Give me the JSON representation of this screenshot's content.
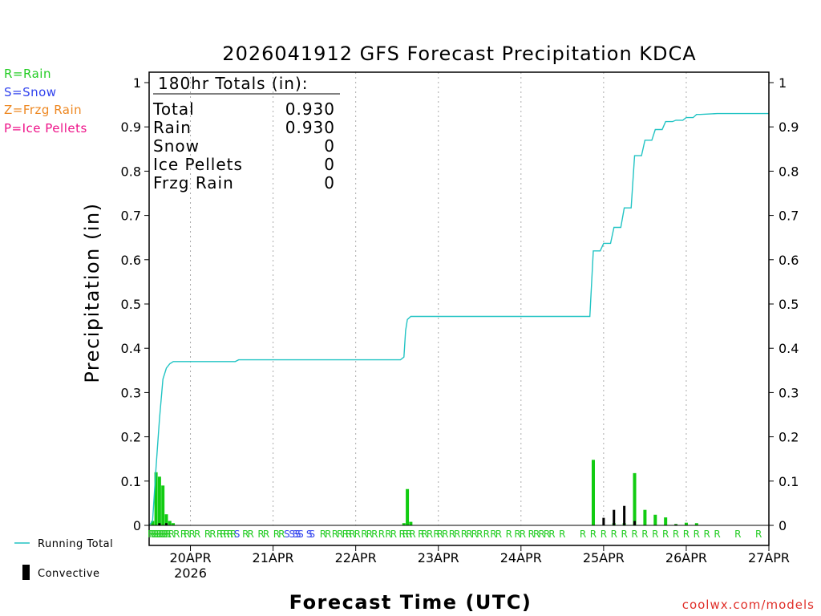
{
  "page": {
    "credit": "coolwx.com/models",
    "credit_color": "#e0302a"
  },
  "phase_legend": [
    {
      "label": "R=Rain",
      "color": "#22cc22"
    },
    {
      "label": "S=Snow",
      "color": "#3344ee"
    },
    {
      "label": "Z=Frzg Rain",
      "color": "#ee8822"
    },
    {
      "label": "P=Ice Pellets",
      "color": "#ee1188"
    }
  ],
  "line_legend": {
    "running_total": "Running Total",
    "convective": "Convective"
  },
  "totals": {
    "heading": "180hr Totals (in):",
    "rows": [
      {
        "label": "Total",
        "value": "0.930"
      },
      {
        "label": "Rain",
        "value": "0.930"
      },
      {
        "label": "Snow",
        "value": "0"
      },
      {
        "label": "Ice Pellets",
        "value": "0"
      },
      {
        "label": "Frzg Rain",
        "value": "0"
      }
    ]
  },
  "chart_data": {
    "type": "bar",
    "title": "2026041912 GFS Forecast Precipitation KDCA",
    "xlabel": "Forecast Time (UTC)",
    "ylabel": "Precipitation (in)",
    "ylim": [
      0,
      1.0
    ],
    "xlim_hours": [
      0,
      180
    ],
    "yticks": [
      0,
      0.1,
      0.2,
      0.3,
      0.4,
      0.5,
      0.6,
      0.7,
      0.8,
      0.9,
      1
    ],
    "ytick_labels": [
      "0",
      "0.1",
      "0.2",
      "0.3",
      "0.4",
      "0.5",
      "0.6",
      "0.7",
      "0.8",
      "0.9",
      "1"
    ],
    "xticks": [
      {
        "hour": 12,
        "label": "20APR",
        "sublabel": "2026"
      },
      {
        "hour": 36,
        "label": "21APR",
        "sublabel": ""
      },
      {
        "hour": 60,
        "label": "22APR",
        "sublabel": ""
      },
      {
        "hour": 84,
        "label": "23APR",
        "sublabel": ""
      },
      {
        "hour": 108,
        "label": "24APR",
        "sublabel": ""
      },
      {
        "hour": 132,
        "label": "25APR",
        "sublabel": ""
      },
      {
        "hour": 156,
        "label": "26APR",
        "sublabel": ""
      },
      {
        "hour": 180,
        "label": "27APR",
        "sublabel": ""
      }
    ],
    "colors": {
      "precip_bar": "#11cc11",
      "convective_bar": "#000000",
      "running_total": "#22c4c4",
      "grid": "#aaaaaa",
      "rain_marker": "#22cc22",
      "snow_marker": "#3344ee"
    },
    "precip_bars": [
      {
        "hour": 1,
        "value": 0.01
      },
      {
        "hour": 2,
        "value": 0.12
      },
      {
        "hour": 3,
        "value": 0.11
      },
      {
        "hour": 4,
        "value": 0.09
      },
      {
        "hour": 5,
        "value": 0.025
      },
      {
        "hour": 6,
        "value": 0.01
      },
      {
        "hour": 7,
        "value": 0.005
      },
      {
        "hour": 74,
        "value": 0.005
      },
      {
        "hour": 75,
        "value": 0.082
      },
      {
        "hour": 76,
        "value": 0.008
      },
      {
        "hour": 129,
        "value": 0.148
      },
      {
        "hour": 135,
        "value": 0.005
      },
      {
        "hour": 138,
        "value": 0.005
      },
      {
        "hour": 141,
        "value": 0.118
      },
      {
        "hour": 144,
        "value": 0.035
      },
      {
        "hour": 147,
        "value": 0.024
      },
      {
        "hour": 150,
        "value": 0.018
      },
      {
        "hour": 153,
        "value": 0.003
      },
      {
        "hour": 156,
        "value": 0.006
      },
      {
        "hour": 159,
        "value": 0.005
      }
    ],
    "convective_bars": [
      {
        "hour": 3,
        "value": 0.005
      },
      {
        "hour": 5,
        "value": 0.005
      },
      {
        "hour": 132,
        "value": 0.017
      },
      {
        "hour": 135,
        "value": 0.035
      },
      {
        "hour": 138,
        "value": 0.044
      },
      {
        "hour": 141,
        "value": 0.01
      },
      {
        "hour": 153,
        "value": 0.002
      }
    ],
    "running_total": {
      "x": [
        0,
        1,
        2,
        3,
        4,
        5,
        6,
        7,
        8,
        10,
        12,
        18,
        25,
        26,
        30,
        40,
        50,
        60,
        70,
        73,
        74,
        74.5,
        75,
        76,
        80,
        90,
        100,
        110,
        120,
        128,
        129,
        130,
        131,
        132,
        133,
        134,
        135,
        136,
        137,
        138,
        139,
        140,
        141,
        142,
        143,
        144,
        145,
        146,
        147,
        148,
        149,
        150,
        151,
        152,
        153,
        154,
        155,
        156,
        157,
        158,
        159,
        160,
        165,
        170,
        175,
        180
      ],
      "y": [
        0,
        0.01,
        0.13,
        0.24,
        0.33,
        0.355,
        0.365,
        0.37,
        0.37,
        0.37,
        0.37,
        0.37,
        0.37,
        0.374,
        0.374,
        0.374,
        0.374,
        0.374,
        0.374,
        0.374,
        0.38,
        0.44,
        0.465,
        0.472,
        0.472,
        0.472,
        0.472,
        0.472,
        0.472,
        0.472,
        0.62,
        0.62,
        0.62,
        0.637,
        0.637,
        0.637,
        0.673,
        0.673,
        0.673,
        0.717,
        0.717,
        0.717,
        0.835,
        0.835,
        0.835,
        0.87,
        0.87,
        0.87,
        0.894,
        0.894,
        0.894,
        0.912,
        0.912,
        0.912,
        0.915,
        0.915,
        0.915,
        0.921,
        0.921,
        0.921,
        0.928,
        0.928,
        0.93,
        0.93,
        0.93,
        0.93
      ]
    },
    "phase_markers": [
      {
        "hour": 0.5,
        "type": "R"
      },
      {
        "hour": 1,
        "type": "R"
      },
      {
        "hour": 1.5,
        "type": "R"
      },
      {
        "hour": 2,
        "type": "R"
      },
      {
        "hour": 2.5,
        "type": "R"
      },
      {
        "hour": 3,
        "type": "R"
      },
      {
        "hour": 3.5,
        "type": "R"
      },
      {
        "hour": 4,
        "type": "R"
      },
      {
        "hour": 4.5,
        "type": "R"
      },
      {
        "hour": 5,
        "type": "R"
      },
      {
        "hour": 5.5,
        "type": "R"
      },
      {
        "hour": 6.5,
        "type": "R"
      },
      {
        "hour": 8,
        "type": "R"
      },
      {
        "hour": 10,
        "type": "R"
      },
      {
        "hour": 11,
        "type": "R"
      },
      {
        "hour": 12.5,
        "type": "R"
      },
      {
        "hour": 14,
        "type": "R"
      },
      {
        "hour": 17,
        "type": "R"
      },
      {
        "hour": 18.5,
        "type": "R"
      },
      {
        "hour": 20.5,
        "type": "R"
      },
      {
        "hour": 21.5,
        "type": "R"
      },
      {
        "hour": 22.5,
        "type": "R"
      },
      {
        "hour": 23.5,
        "type": "R"
      },
      {
        "hour": 24.5,
        "type": "R"
      },
      {
        "hour": 25.5,
        "type": "S"
      },
      {
        "hour": 28,
        "type": "R"
      },
      {
        "hour": 29.5,
        "type": "R"
      },
      {
        "hour": 32.5,
        "type": "R"
      },
      {
        "hour": 34,
        "type": "R"
      },
      {
        "hour": 37,
        "type": "R"
      },
      {
        "hour": 38.5,
        "type": "R"
      },
      {
        "hour": 40,
        "type": "S"
      },
      {
        "hour": 41.5,
        "type": "S"
      },
      {
        "hour": 42.5,
        "type": "S"
      },
      {
        "hour": 43.2,
        "type": "S"
      },
      {
        "hour": 44,
        "type": "S"
      },
      {
        "hour": 46.5,
        "type": "S"
      },
      {
        "hour": 47.3,
        "type": "S"
      },
      {
        "hour": 50.5,
        "type": "R"
      },
      {
        "hour": 52,
        "type": "R"
      },
      {
        "hour": 54,
        "type": "R"
      },
      {
        "hour": 55.5,
        "type": "R"
      },
      {
        "hour": 57,
        "type": "R"
      },
      {
        "hour": 58,
        "type": "R"
      },
      {
        "hour": 59,
        "type": "R"
      },
      {
        "hour": 60.5,
        "type": "R"
      },
      {
        "hour": 62.5,
        "type": "R"
      },
      {
        "hour": 64,
        "type": "R"
      },
      {
        "hour": 65.5,
        "type": "R"
      },
      {
        "hour": 67.5,
        "type": "R"
      },
      {
        "hour": 69.5,
        "type": "R"
      },
      {
        "hour": 71,
        "type": "R"
      },
      {
        "hour": 73.5,
        "type": "R"
      },
      {
        "hour": 74.5,
        "type": "R"
      },
      {
        "hour": 75.5,
        "type": "R"
      },
      {
        "hour": 76.5,
        "type": "R"
      },
      {
        "hour": 79,
        "type": "R"
      },
      {
        "hour": 80,
        "type": "R"
      },
      {
        "hour": 81.5,
        "type": "R"
      },
      {
        "hour": 83.5,
        "type": "R"
      },
      {
        "hour": 84.5,
        "type": "R"
      },
      {
        "hour": 86,
        "type": "R"
      },
      {
        "hour": 88,
        "type": "R"
      },
      {
        "hour": 89.5,
        "type": "R"
      },
      {
        "hour": 91.5,
        "type": "R"
      },
      {
        "hour": 93,
        "type": "R"
      },
      {
        "hour": 94.5,
        "type": "R"
      },
      {
        "hour": 96,
        "type": "R"
      },
      {
        "hour": 98,
        "type": "R"
      },
      {
        "hour": 100,
        "type": "R"
      },
      {
        "hour": 101.5,
        "type": "R"
      },
      {
        "hour": 104.5,
        "type": "R"
      },
      {
        "hour": 107,
        "type": "R"
      },
      {
        "hour": 108.5,
        "type": "R"
      },
      {
        "hour": 111,
        "type": "R"
      },
      {
        "hour": 112.5,
        "type": "R"
      },
      {
        "hour": 114,
        "type": "R"
      },
      {
        "hour": 115.5,
        "type": "R"
      },
      {
        "hour": 117,
        "type": "R"
      },
      {
        "hour": 120,
        "type": "R"
      },
      {
        "hour": 126,
        "type": "R"
      },
      {
        "hour": 129,
        "type": "R"
      },
      {
        "hour": 132,
        "type": "R"
      },
      {
        "hour": 135,
        "type": "R"
      },
      {
        "hour": 138,
        "type": "R"
      },
      {
        "hour": 141,
        "type": "R"
      },
      {
        "hour": 144,
        "type": "R"
      },
      {
        "hour": 147,
        "type": "R"
      },
      {
        "hour": 150,
        "type": "R"
      },
      {
        "hour": 153,
        "type": "R"
      },
      {
        "hour": 156,
        "type": "R"
      },
      {
        "hour": 159,
        "type": "R"
      },
      {
        "hour": 162,
        "type": "R"
      },
      {
        "hour": 165,
        "type": "R"
      },
      {
        "hour": 171,
        "type": "R"
      },
      {
        "hour": 177,
        "type": "R"
      }
    ]
  }
}
